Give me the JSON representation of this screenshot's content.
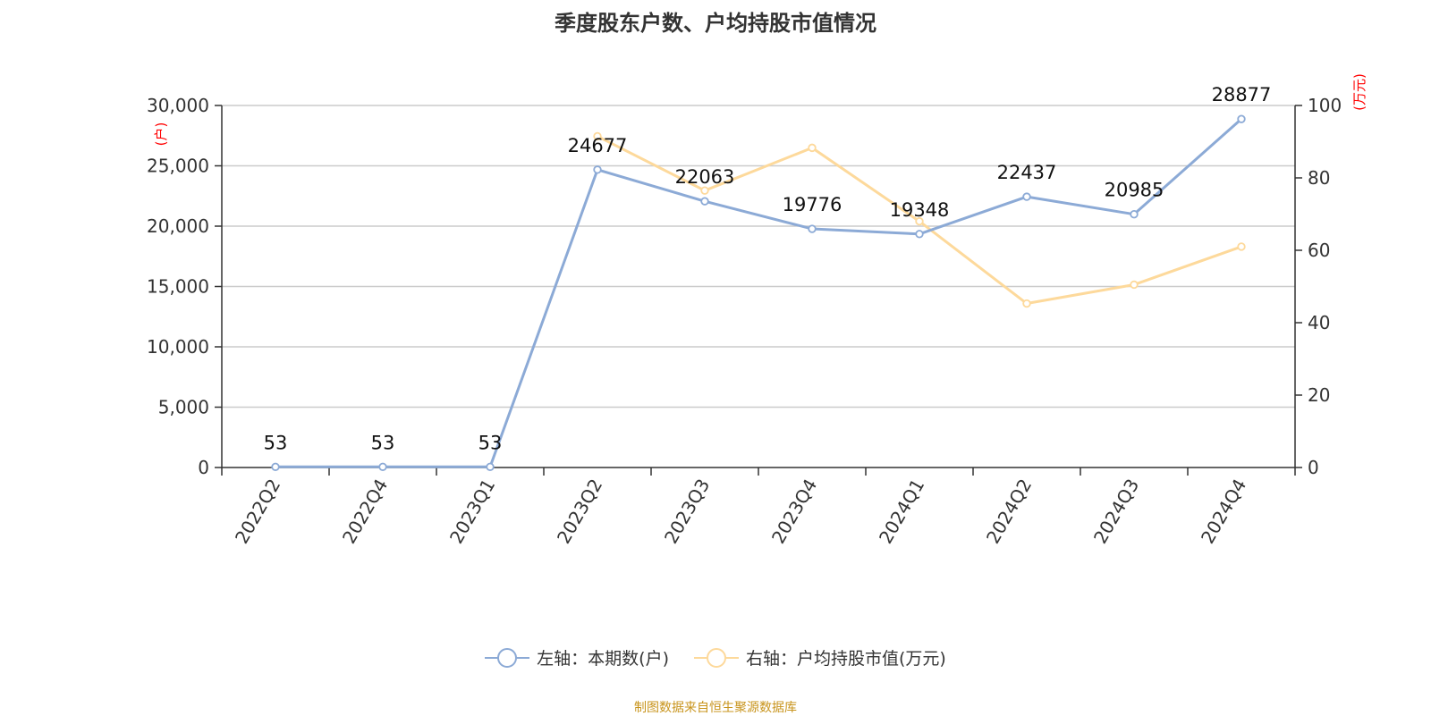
{
  "chart_data": {
    "type": "line",
    "title": "季度股东户数、户均持股市值情况",
    "categories": [
      "2022Q2",
      "2022Q4",
      "2023Q1",
      "2023Q2",
      "2023Q3",
      "2023Q4",
      "2024Q1",
      "2024Q2",
      "2024Q3",
      "2024Q4"
    ],
    "series": [
      {
        "name": "左轴：本期数(户)",
        "axis": "left",
        "color": "#8caad6",
        "values": [
          53,
          53,
          53,
          24677,
          22063,
          19776,
          19348,
          22437,
          20985,
          28877
        ],
        "labels": [
          "53",
          "53",
          "53",
          "24677",
          "22063",
          "19776",
          "19348",
          "22437",
          "20985",
          "28877"
        ]
      },
      {
        "name": "右轴：户均持股市值(万元)",
        "axis": "right",
        "color": "#fdd99b",
        "values": [
          null,
          null,
          null,
          91.5,
          76.5,
          88.3,
          68,
          45.3,
          50.5,
          61
        ]
      }
    ],
    "y_left": {
      "unit": "(户)",
      "ylim": [
        0,
        30000
      ],
      "ticks": [
        0,
        5000,
        10000,
        15000,
        20000,
        25000,
        30000
      ],
      "tick_labels": [
        "0",
        "5,000",
        "10,000",
        "15,000",
        "20,000",
        "25,000",
        "30,000"
      ]
    },
    "y_right": {
      "unit": "(万元)",
      "ylim": [
        0,
        100
      ],
      "ticks": [
        0,
        20,
        40,
        60,
        80,
        100
      ],
      "tick_labels": [
        "0",
        "20",
        "40",
        "60",
        "80",
        "100"
      ]
    },
    "grid": true,
    "legend_position": "bottom-center",
    "unit_color": "#ff0000"
  },
  "source": {
    "text": "制图数据来自恒生聚源数据库",
    "color": "#c8941c"
  }
}
